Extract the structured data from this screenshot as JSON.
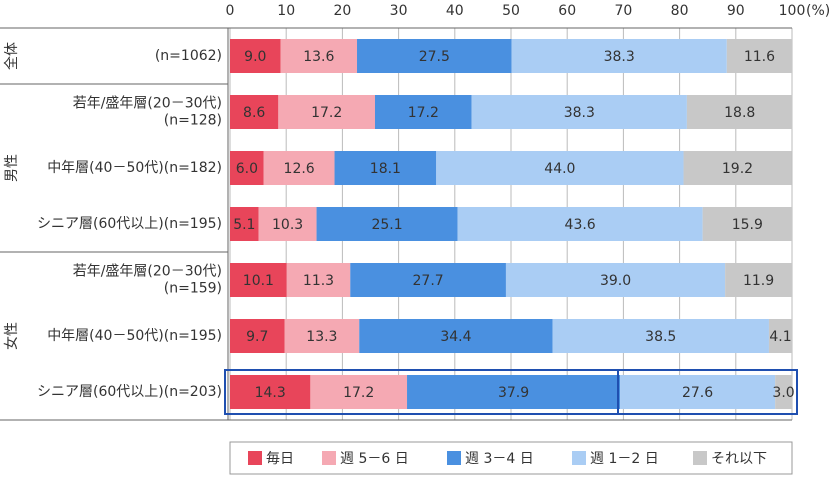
{
  "chart_data": {
    "type": "stacked-bar-horizontal",
    "x_unit": "(%)",
    "xlim": [
      0,
      100
    ],
    "xticks": [
      0,
      10,
      20,
      30,
      40,
      50,
      60,
      70,
      80,
      90,
      100
    ],
    "grid": true,
    "groups": [
      {
        "label": "全体",
        "categories": [
          [
            "(n=1062)"
          ]
        ]
      },
      {
        "label": "男性",
        "categories": [
          [
            "若年/盛年層(20－30代)",
            "(n=128)"
          ],
          [
            "中年層(40－50代)(n=182)"
          ],
          [
            "シニア層(60代以上)(n=195)"
          ]
        ]
      },
      {
        "label": "女性",
        "categories": [
          [
            "若年/盛年層(20－30代)",
            "(n=159)"
          ],
          [
            "中年層(40－50代)(n=195)"
          ],
          [
            "シニア層(60代以上)(n=203)"
          ]
        ]
      }
    ],
    "series": [
      {
        "name": "毎日",
        "color": "#e8455a",
        "values": [
          9.0,
          8.6,
          6.0,
          5.1,
          10.1,
          9.7,
          14.3
        ],
        "value_labels": [
          "9.0",
          "8.6",
          "6.0",
          "5.1",
          "10.1",
          "9.7",
          "14.3"
        ]
      },
      {
        "name": "週 5－6 日",
        "color": "#f5a9b3",
        "values": [
          13.6,
          17.2,
          12.6,
          10.3,
          11.3,
          13.3,
          17.2
        ],
        "value_labels": [
          "13.6",
          "17.2",
          "12.6",
          "10.3",
          "11.3",
          "13.3",
          "17.2"
        ]
      },
      {
        "name": "週 3－4 日",
        "color": "#4a90e0",
        "values": [
          27.5,
          17.2,
          18.1,
          25.1,
          27.7,
          34.4,
          37.9
        ],
        "value_labels": [
          "27.5",
          "17.2",
          "18.1",
          "25.1",
          "27.7",
          "34.4",
          "37.9"
        ]
      },
      {
        "name": "週 1－2 日",
        "color": "#aacdf4",
        "values": [
          38.3,
          38.3,
          44.0,
          43.6,
          39.0,
          38.5,
          27.6
        ],
        "value_labels": [
          "38.3",
          "38.3",
          "44.0",
          "43.6",
          "39.0",
          "38.5",
          "27.6"
        ]
      },
      {
        "name": "それ以下",
        "color": "#c8c8c8",
        "values": [
          11.6,
          18.8,
          19.2,
          15.9,
          11.9,
          4.1,
          3.0
        ],
        "value_labels": [
          "11.6",
          "18.8",
          "19.2",
          "15.9",
          "11.9",
          "4.1",
          "3.0"
        ]
      }
    ]
  }
}
